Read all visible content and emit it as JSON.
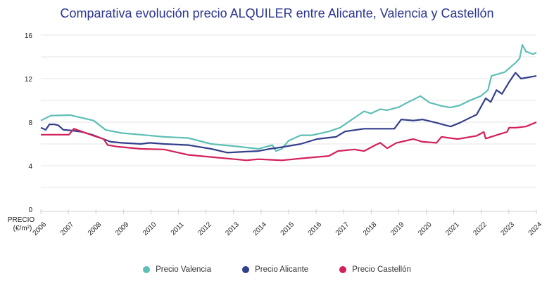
{
  "chart_data": {
    "type": "line",
    "title": "Comparativa evolución precio ALQUILER entre Alicante, Valencia y Castellón",
    "ylabel": "PRECIO (€/m²)",
    "xlabel": "",
    "ylim": [
      0,
      16
    ],
    "yticks": [
      0,
      4,
      8,
      12,
      16
    ],
    "xlim": [
      2006,
      2024
    ],
    "xticks": [
      "2006",
      "2007",
      "2008",
      "2009",
      "2010",
      "2011",
      "2012",
      "2013",
      "2014",
      "2015",
      "2016",
      "2017",
      "2018",
      "2019",
      "2020",
      "2021",
      "2022",
      "2023",
      "2024"
    ],
    "grid": true,
    "legend_position": "bottom",
    "series": [
      {
        "name": "Precio Valencia",
        "color": "#5dbfb6",
        "x": [
          2006.0,
          2006.36,
          2007.07,
          2007.92,
          2008.35,
          2008.94,
          2009.63,
          2010.48,
          2011.35,
          2012.19,
          2013.03,
          2013.9,
          2014.41,
          2014.54,
          2014.75,
          2015.0,
          2015.44,
          2015.85,
          2016.46,
          2016.87,
          2017.3,
          2017.74,
          2017.99,
          2018.33,
          2018.58,
          2019.02,
          2019.27,
          2019.79,
          2020.12,
          2020.55,
          2020.88,
          2021.22,
          2021.58,
          2021.98,
          2022.24,
          2022.37,
          2022.85,
          2023.26,
          2023.39,
          2023.49,
          2023.62,
          2023.88,
          2024.0
        ],
        "y": [
          8.15,
          8.6,
          8.65,
          8.15,
          7.3,
          7.0,
          6.85,
          6.65,
          6.55,
          6.0,
          5.8,
          5.55,
          5.9,
          5.35,
          5.55,
          6.3,
          6.8,
          6.8,
          7.15,
          7.5,
          8.25,
          9.0,
          8.8,
          9.2,
          9.1,
          9.4,
          9.75,
          10.4,
          9.8,
          9.5,
          9.35,
          9.55,
          10.0,
          10.4,
          10.95,
          12.25,
          12.6,
          13.5,
          13.85,
          15.1,
          14.5,
          14.25,
          14.4
        ]
      },
      {
        "name": "Precio Alicante",
        "color": "#323f8a",
        "x": [
          2006.0,
          2006.18,
          2006.31,
          2006.49,
          2006.64,
          2006.82,
          2007.07,
          2007.51,
          2007.92,
          2008.53,
          2008.94,
          2009.63,
          2009.96,
          2010.48,
          2011.35,
          2012.19,
          2012.78,
          2013.47,
          2013.9,
          2014.31,
          2014.75,
          2015.44,
          2016.03,
          2016.72,
          2017.05,
          2017.74,
          2018.33,
          2018.84,
          2019.09,
          2019.53,
          2019.86,
          2020.37,
          2020.88,
          2021.22,
          2021.58,
          2021.83,
          2022.16,
          2022.34,
          2022.55,
          2022.75,
          2023.01,
          2023.24,
          2023.44,
          2024.0
        ],
        "y": [
          7.5,
          7.3,
          7.8,
          7.8,
          7.7,
          7.3,
          7.25,
          7.1,
          6.8,
          6.2,
          6.1,
          6.0,
          6.1,
          6.0,
          5.9,
          5.55,
          5.2,
          5.3,
          5.35,
          5.55,
          5.7,
          6.0,
          6.45,
          6.65,
          7.15,
          7.4,
          7.4,
          7.4,
          8.25,
          8.15,
          8.25,
          7.95,
          7.6,
          7.95,
          8.4,
          8.7,
          10.2,
          9.85,
          10.95,
          10.6,
          11.7,
          12.55,
          12.0,
          12.25
        ]
      },
      {
        "name": "Precio Castellón",
        "color": "#d3205a",
        "x": [
          2006.0,
          2007.02,
          2007.2,
          2007.92,
          2008.28,
          2008.43,
          2008.79,
          2009.63,
          2010.48,
          2011.35,
          2012.19,
          2013.03,
          2013.47,
          2013.9,
          2014.75,
          2015.59,
          2016.46,
          2016.79,
          2017.38,
          2017.74,
          2018.15,
          2018.33,
          2018.58,
          2018.92,
          2019.53,
          2019.86,
          2020.37,
          2020.55,
          2021.14,
          2021.83,
          2022.09,
          2022.16,
          2022.6,
          2022.93,
          2023.01,
          2023.26,
          2023.62,
          2024.0
        ],
        "y": [
          6.85,
          6.85,
          7.4,
          6.75,
          6.45,
          5.9,
          5.75,
          5.55,
          5.5,
          5.0,
          4.8,
          4.6,
          4.5,
          4.6,
          4.5,
          4.7,
          4.9,
          5.35,
          5.5,
          5.35,
          5.9,
          6.1,
          5.6,
          6.1,
          6.45,
          6.2,
          6.1,
          6.65,
          6.45,
          6.75,
          7.1,
          6.5,
          6.85,
          7.1,
          7.5,
          7.5,
          7.6,
          8.0
        ]
      }
    ]
  }
}
